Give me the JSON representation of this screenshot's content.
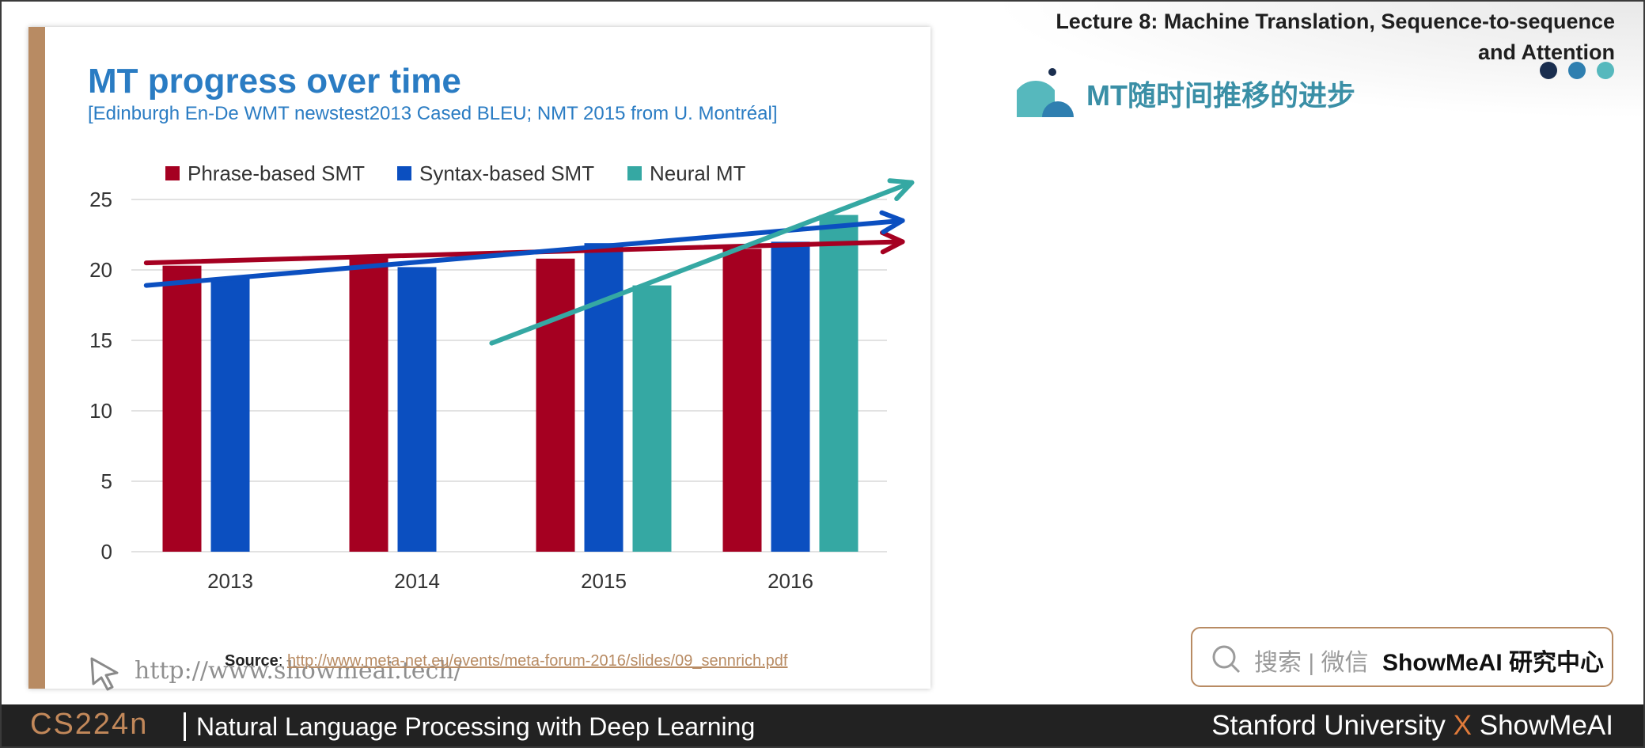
{
  "header": {
    "lecture_title": "Lecture 8: Machine Translation, Sequence-to-sequence and Attention",
    "cn_title": "MT随时间推移的进步",
    "dot_colors": [
      "#1a2e4f",
      "#2f7fb0",
      "#56b8bd"
    ]
  },
  "slide": {
    "title": "MT progress over time",
    "subtitle": "[Edinburgh En-De WMT newstest2013 Cased BLEU; NMT 2015 from U. Montréal]",
    "source_label": "Source",
    "source_url": "http://www.meta-net.eu/events/meta-forum-2016/slides/09_sennrich.pdf",
    "watermark": "http://www.showmeai.tech/"
  },
  "chart_data": {
    "type": "bar",
    "categories": [
      "2013",
      "2014",
      "2015",
      "2016"
    ],
    "series": [
      {
        "name": "Phrase-based SMT",
        "color": "#a50021",
        "values": [
          20.3,
          21.0,
          20.8,
          21.5
        ]
      },
      {
        "name": "Syntax-based SMT",
        "color": "#0b4fc0",
        "values": [
          19.4,
          20.2,
          21.9,
          22.0
        ]
      },
      {
        "name": "Neural MT",
        "color": "#35a8a3",
        "values": [
          null,
          null,
          18.9,
          23.9
        ]
      }
    ],
    "ylim": [
      0,
      25
    ],
    "yticks": [
      0,
      5,
      10,
      15,
      20,
      25
    ],
    "grid": true,
    "legend": "top",
    "trend_arrows": [
      {
        "series": "Phrase-based SMT",
        "color": "#a50021",
        "from": [
          -0.45,
          20.5
        ],
        "to": [
          3.6,
          22.0
        ]
      },
      {
        "series": "Syntax-based SMT",
        "color": "#0b4fc0",
        "from": [
          -0.45,
          18.9
        ],
        "to": [
          3.6,
          23.5
        ]
      },
      {
        "series": "Neural MT",
        "color": "#35a8a3",
        "from": [
          1.4,
          14.8
        ],
        "to": [
          3.65,
          26.2
        ]
      }
    ]
  },
  "search": {
    "placeholder": "搜索 | 微信",
    "brand": "ShowMeAI 研究中心"
  },
  "footer": {
    "course": "CS224n",
    "description": "Natural Language Processing with Deep Learning",
    "right_a": "Stanford University",
    "right_x": "X",
    "right_b": "ShowMeAI"
  }
}
